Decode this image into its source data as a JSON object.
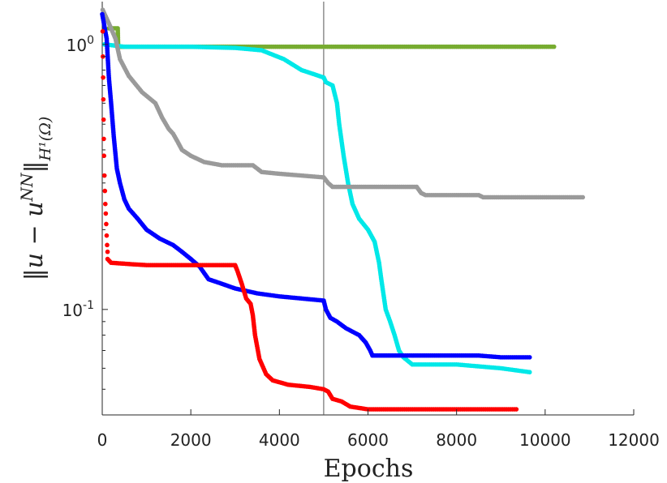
{
  "chart_data": {
    "type": "scatter",
    "title": "",
    "xlabel": "Epochs",
    "ylabel_main": "‖u − u",
    "ylabel_sup": "NN",
    "ylabel_end": "‖",
    "ylabel_sub": "H¹(Ω)",
    "xlim": [
      0,
      12000
    ],
    "ylim": [
      0.04,
      1.45
    ],
    "yscale": "log",
    "xticks": [
      0,
      2000,
      4000,
      6000,
      8000,
      10000,
      12000
    ],
    "xtick_labels": [
      "0",
      "2000",
      "4000",
      "6000",
      "8000",
      "10000",
      "12000"
    ],
    "yticks": [
      {
        "value": 1.0,
        "base": "10",
        "exp": "0"
      },
      {
        "value": 0.1,
        "base": "10",
        "exp": "-1"
      }
    ],
    "vline_x": 5000,
    "grid": false,
    "legend": "none",
    "series": [
      {
        "color": "#77ac30",
        "kind": "dense",
        "values": [
          [
            150,
            1.15
          ],
          [
            350,
            1.15
          ],
          [
            360,
            0.98
          ],
          [
            500,
            0.98
          ],
          [
            2000,
            0.98
          ],
          [
            5000,
            0.98
          ],
          [
            8000,
            0.98
          ],
          [
            10200,
            0.98
          ]
        ]
      },
      {
        "color": "#00e8e8",
        "kind": "dense",
        "values": [
          [
            50,
            1.0
          ],
          [
            500,
            0.98
          ],
          [
            2000,
            0.98
          ],
          [
            3000,
            0.97
          ],
          [
            3600,
            0.95
          ],
          [
            4100,
            0.88
          ],
          [
            4500,
            0.8
          ],
          [
            4800,
            0.77
          ],
          [
            5000,
            0.75
          ],
          [
            5050,
            0.72
          ],
          [
            5200,
            0.7
          ],
          [
            5300,
            0.6
          ],
          [
            5350,
            0.5
          ],
          [
            5450,
            0.38
          ],
          [
            5550,
            0.3
          ],
          [
            5650,
            0.25
          ],
          [
            5800,
            0.22
          ],
          [
            6000,
            0.2
          ],
          [
            6150,
            0.18
          ],
          [
            6250,
            0.15
          ],
          [
            6300,
            0.13
          ],
          [
            6400,
            0.1
          ],
          [
            6500,
            0.09
          ],
          [
            6600,
            0.08
          ],
          [
            6700,
            0.07
          ],
          [
            6800,
            0.066
          ],
          [
            7000,
            0.062
          ],
          [
            8000,
            0.062
          ],
          [
            9000,
            0.06
          ],
          [
            9650,
            0.058
          ]
        ]
      },
      {
        "color": "#9a9a9a",
        "kind": "dense",
        "values": [
          [
            10,
            1.35
          ],
          [
            150,
            1.2
          ],
          [
            300,
            1.05
          ],
          [
            400,
            0.88
          ],
          [
            600,
            0.76
          ],
          [
            900,
            0.66
          ],
          [
            1200,
            0.6
          ],
          [
            1350,
            0.53
          ],
          [
            1500,
            0.48
          ],
          [
            1600,
            0.46
          ],
          [
            1700,
            0.43
          ],
          [
            1800,
            0.4
          ],
          [
            2000,
            0.38
          ],
          [
            2300,
            0.36
          ],
          [
            2700,
            0.35
          ],
          [
            3400,
            0.35
          ],
          [
            3600,
            0.33
          ],
          [
            4000,
            0.325
          ],
          [
            4500,
            0.32
          ],
          [
            5000,
            0.315
          ],
          [
            5100,
            0.3
          ],
          [
            5200,
            0.29
          ],
          [
            6500,
            0.29
          ],
          [
            7100,
            0.29
          ],
          [
            7200,
            0.275
          ],
          [
            7300,
            0.27
          ],
          [
            8000,
            0.27
          ],
          [
            8500,
            0.27
          ],
          [
            8600,
            0.265
          ],
          [
            10850,
            0.265
          ]
        ]
      },
      {
        "color": "#0000ff",
        "kind": "dense",
        "values": [
          [
            0,
            1.3
          ],
          [
            100,
            1.05
          ],
          [
            150,
            0.75
          ],
          [
            200,
            0.6
          ],
          [
            260,
            0.45
          ],
          [
            330,
            0.34
          ],
          [
            400,
            0.3
          ],
          [
            500,
            0.26
          ],
          [
            600,
            0.24
          ],
          [
            800,
            0.22
          ],
          [
            1000,
            0.2
          ],
          [
            1300,
            0.185
          ],
          [
            1600,
            0.175
          ],
          [
            1800,
            0.165
          ],
          [
            2000,
            0.155
          ],
          [
            2200,
            0.145
          ],
          [
            2400,
            0.13
          ],
          [
            2700,
            0.125
          ],
          [
            3000,
            0.12
          ],
          [
            3200,
            0.118
          ],
          [
            3500,
            0.115
          ],
          [
            4000,
            0.112
          ],
          [
            4500,
            0.11
          ],
          [
            5000,
            0.108
          ],
          [
            5050,
            0.1
          ],
          [
            5150,
            0.093
          ],
          [
            5300,
            0.09
          ],
          [
            5500,
            0.085
          ],
          [
            5800,
            0.08
          ],
          [
            5950,
            0.075
          ],
          [
            6050,
            0.07
          ],
          [
            6100,
            0.067
          ],
          [
            6500,
            0.067
          ],
          [
            8500,
            0.067
          ],
          [
            9000,
            0.066
          ],
          [
            9650,
            0.066
          ]
        ]
      },
      {
        "color": "#ff0000",
        "kind": "dense",
        "values": [
          [
            120,
            0.155
          ],
          [
            200,
            0.15
          ],
          [
            700,
            0.148
          ],
          [
            1000,
            0.147
          ],
          [
            2000,
            0.147
          ],
          [
            3000,
            0.147
          ],
          [
            3050,
            0.14
          ],
          [
            3150,
            0.125
          ],
          [
            3250,
            0.11
          ],
          [
            3350,
            0.105
          ],
          [
            3400,
            0.095
          ],
          [
            3450,
            0.08
          ],
          [
            3550,
            0.065
          ],
          [
            3700,
            0.057
          ],
          [
            3850,
            0.054
          ],
          [
            4200,
            0.052
          ],
          [
            4700,
            0.051
          ],
          [
            5000,
            0.05
          ],
          [
            5100,
            0.049
          ],
          [
            5200,
            0.046
          ],
          [
            5400,
            0.045
          ],
          [
            5600,
            0.043
          ],
          [
            6000,
            0.042
          ],
          [
            7000,
            0.042
          ],
          [
            8000,
            0.042
          ],
          [
            9350,
            0.042
          ]
        ]
      },
      {
        "color": "#ff0000",
        "kind": "sparse",
        "values": [
          [
            10,
            1.12
          ],
          [
            15,
            0.9
          ],
          [
            20,
            0.75
          ],
          [
            25,
            0.62
          ],
          [
            30,
            0.52
          ],
          [
            35,
            0.44
          ],
          [
            40,
            0.38
          ],
          [
            50,
            0.32
          ],
          [
            60,
            0.28
          ],
          [
            70,
            0.25
          ],
          [
            80,
            0.23
          ],
          [
            90,
            0.21
          ],
          [
            100,
            0.19
          ],
          [
            110,
            0.175
          ],
          [
            120,
            0.165
          ]
        ]
      }
    ]
  }
}
